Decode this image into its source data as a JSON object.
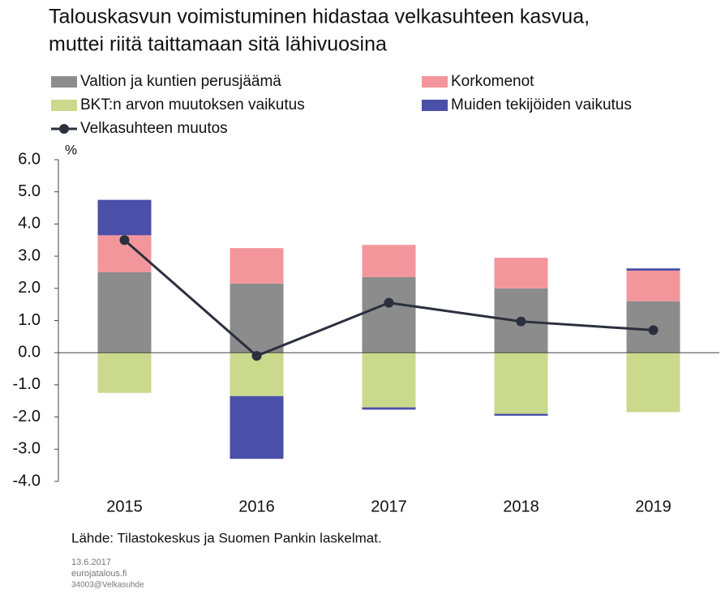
{
  "chart_data": {
    "type": "bar",
    "stacked": true,
    "title": [
      "Talouskasvun voimistuminen hidastaa velkasuhteen kasvua,",
      "muttei riitä taittamaan sitä lähivuosina"
    ],
    "y_label": "%",
    "categories": [
      "2015",
      "2016",
      "2017",
      "2018",
      "2019"
    ],
    "series": [
      {
        "name": "Valtion ja kuntien perusjäämä",
        "color": "#8c8c8c",
        "values": [
          2.5,
          2.15,
          2.35,
          2.0,
          1.6
        ]
      },
      {
        "name": "Korkomenot",
        "color": "#f3969b",
        "values": [
          1.15,
          1.1,
          1.0,
          0.95,
          0.95
        ]
      },
      {
        "name": "BKT:n arvon muutoksen vaikutus",
        "color": "#cad98c",
        "values": [
          -1.25,
          -1.35,
          -1.7,
          -1.9,
          -1.85
        ]
      },
      {
        "name": "Muiden tekijöiden vaikutus",
        "color": "#4a4fa8",
        "values": [
          1.1,
          -1.95,
          -0.07,
          -0.06,
          0.07
        ]
      }
    ],
    "line": {
      "name": "Velkasuhteen muutos",
      "color": "#2b2f3e",
      "values": [
        3.5,
        -0.1,
        1.55,
        0.97,
        0.7
      ]
    },
    "ylim": [
      -4,
      6
    ],
    "yticks": [
      {
        "value": -4,
        "label": "-4.0"
      },
      {
        "value": -3,
        "label": "-3.0"
      },
      {
        "value": -2,
        "label": "-2.0"
      },
      {
        "value": -1,
        "label": "-1.0"
      },
      {
        "value": 0,
        "label": "0.0"
      },
      {
        "value": 1,
        "label": "1.0"
      },
      {
        "value": 2,
        "label": "2.0"
      },
      {
        "value": 3,
        "label": "3.0"
      },
      {
        "value": 4,
        "label": "4.0"
      },
      {
        "value": 5,
        "label": "5.0"
      },
      {
        "value": 6,
        "label": "6.0"
      }
    ],
    "source": "Lähde: Tilastokeskus ja Suomen Pankin laskelmat.",
    "notes": [
      "13.6.2017",
      "eurojatalous.fi",
      "34003@Velkasuhde"
    ]
  }
}
